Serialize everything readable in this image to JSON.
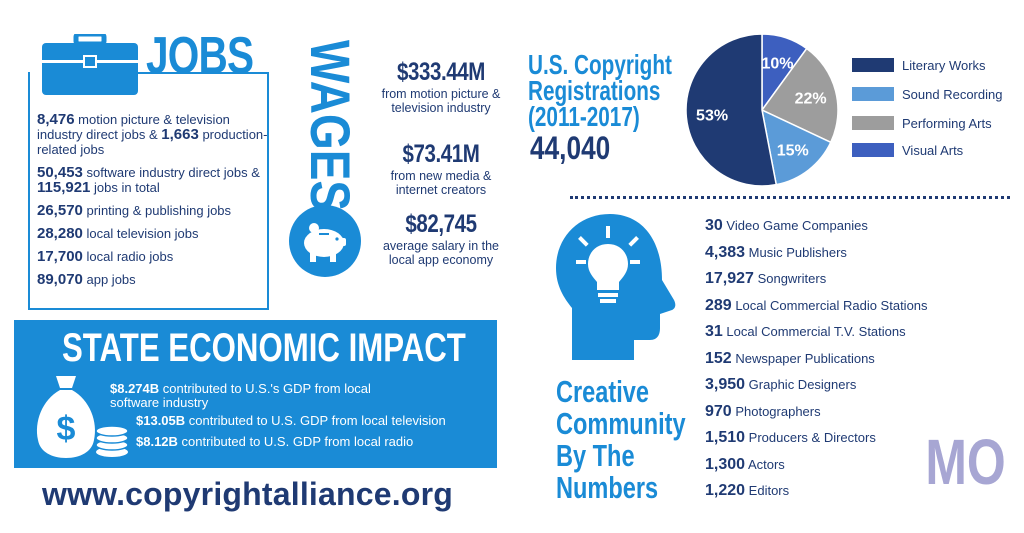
{
  "jobs": {
    "title": "JOBS",
    "items": [
      {
        "parts": [
          {
            "b": "8,476"
          },
          {
            "t": " motion picture & television industry direct jobs & "
          },
          {
            "b": "1,663"
          },
          {
            "t": " production-related jobs"
          }
        ]
      },
      {
        "parts": [
          {
            "b": "50,453"
          },
          {
            "t": " software industry direct jobs & "
          },
          {
            "b": "115,921"
          },
          {
            "t": " jobs in total"
          }
        ]
      },
      {
        "parts": [
          {
            "b": "26,570"
          },
          {
            "t": " printing & publishing jobs"
          }
        ]
      },
      {
        "parts": [
          {
            "b": "28,280"
          },
          {
            "t": " local television jobs"
          }
        ]
      },
      {
        "parts": [
          {
            "b": "17,700"
          },
          {
            "t": " local radio jobs"
          }
        ]
      },
      {
        "parts": [
          {
            "b": "89,070"
          },
          {
            "t": " app jobs"
          }
        ]
      }
    ]
  },
  "wages": {
    "title": "WAGES",
    "items": [
      {
        "value": "$333.44M",
        "text": "from motion picture & television industry"
      },
      {
        "value": "$73.41M",
        "text": "from new media & internet creators"
      },
      {
        "value": "$82,745",
        "text": "average salary in the local app economy"
      }
    ]
  },
  "state_impact": {
    "title": "STATE ECONOMIC IMPACT",
    "lines": [
      {
        "value": "$8.274B",
        "text": " contributed to U.S.'s GDP from local software industry"
      },
      {
        "value": "$13.05B",
        "text": " contributed to U.S. GDP from local television"
      },
      {
        "value": "$8.12B",
        "text": " contributed to U.S. GDP from local radio"
      }
    ]
  },
  "website": "www.copyrightalliance.org",
  "copyright": {
    "title_lines": [
      "U.S. Copyright",
      "Registrations",
      "(2011-2017)"
    ],
    "total": "44,040"
  },
  "chart_data": {
    "type": "pie",
    "categories": [
      "Literary Works",
      "Sound Recording",
      "Performing Arts",
      "Visual Arts"
    ],
    "values": [
      53,
      15,
      22,
      10
    ],
    "value_labels": [
      "53%",
      "15%",
      "22%",
      "10%"
    ],
    "colors": [
      "#1f3a73",
      "#5b9bd8",
      "#9d9d9d",
      "#3d5fbf"
    ],
    "legend_placement": "right"
  },
  "creative": {
    "title_lines": [
      "Creative",
      "Community",
      "By The",
      "Numbers"
    ],
    "items": [
      {
        "value": "30",
        "label": "Video Game Companies"
      },
      {
        "value": "4,383",
        "label": "Music Publishers"
      },
      {
        "value": "17,927",
        "label": "Songwriters"
      },
      {
        "value": "289",
        "label": "Local Commercial Radio Stations"
      },
      {
        "value": "31",
        "label": "Local Commercial T.V. Stations"
      },
      {
        "value": "152",
        "label": "Newspaper Publications"
      },
      {
        "value": "3,950",
        "label": "Graphic Designers"
      },
      {
        "value": "970",
        "label": "Photographers"
      },
      {
        "value": "1,510",
        "label": "Producers & Directors"
      },
      {
        "value": "1,300",
        "label": "Actors"
      },
      {
        "value": "1,220",
        "label": "Editors"
      }
    ]
  },
  "state_code": "MO",
  "icons": {
    "briefcase": "briefcase-icon",
    "piggy": "piggy-bank-icon",
    "moneybag": "money-bag-icon",
    "head": "head-lightbulb-icon"
  },
  "colors": {
    "primary_blue": "#1a8bd6",
    "navy": "#1f3a73",
    "state_code": "#a7a6d3"
  }
}
